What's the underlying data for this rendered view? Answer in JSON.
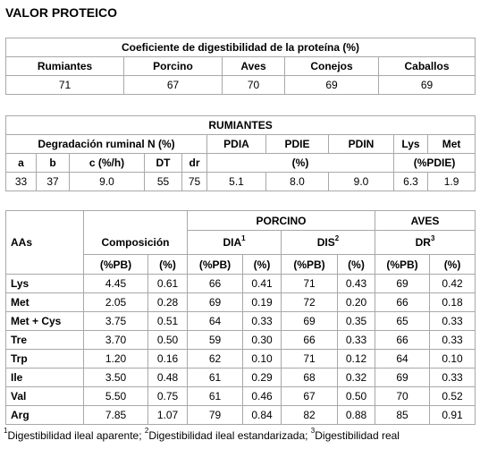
{
  "title": "VALOR PROTEICO",
  "table1": {
    "header": "Coeficiente de digestibilidad de la proteína (%)",
    "columns": [
      "Rumiantes",
      "Porcino",
      "Aves",
      "Conejos",
      "Caballos"
    ],
    "values": [
      "71",
      "67",
      "70",
      "69",
      "69"
    ]
  },
  "table2": {
    "header": "RUMIANTES",
    "group_degradacion": "Degradación ruminal N (%)",
    "col_pdia": "PDIA",
    "col_pdie": "PDIE",
    "col_pdin": "PDIN",
    "col_lys": "Lys",
    "col_met": "Met",
    "sub_a": "a",
    "sub_b": "b",
    "sub_c": "c (%/h)",
    "sub_dt": "DT",
    "sub_dr": "dr",
    "unit_pdi": "(%)",
    "unit_aa": "(%PDIE)",
    "values": [
      "33",
      "37",
      "9.0",
      "55",
      "75",
      "5.1",
      "8.0",
      "9.0",
      "6.3",
      "1.9"
    ]
  },
  "table3": {
    "group_porcino": "PORCINO",
    "group_aves": "AVES",
    "col_aas": "AAs",
    "col_composicion": "Composición",
    "col_dia": "DIA",
    "col_dia_sup": "1",
    "col_dis": "DIS",
    "col_dis_sup": "2",
    "col_dr": "DR",
    "col_dr_sup": "3",
    "unit_pb": "(%PB)",
    "unit_pct": "(%)",
    "rows": [
      {
        "aa": "Lys",
        "v": [
          "4.45",
          "0.61",
          "66",
          "0.41",
          "71",
          "0.43",
          "69",
          "0.42"
        ]
      },
      {
        "aa": "Met",
        "v": [
          "2.05",
          "0.28",
          "69",
          "0.19",
          "72",
          "0.20",
          "66",
          "0.18"
        ]
      },
      {
        "aa": "Met + Cys",
        "v": [
          "3.75",
          "0.51",
          "64",
          "0.33",
          "69",
          "0.35",
          "65",
          "0.33"
        ]
      },
      {
        "aa": "Tre",
        "v": [
          "3.70",
          "0.50",
          "59",
          "0.30",
          "66",
          "0.33",
          "66",
          "0.33"
        ]
      },
      {
        "aa": "Trp",
        "v": [
          "1.20",
          "0.16",
          "62",
          "0.10",
          "71",
          "0.12",
          "64",
          "0.10"
        ]
      },
      {
        "aa": "Ile",
        "v": [
          "3.50",
          "0.48",
          "61",
          "0.29",
          "68",
          "0.32",
          "69",
          "0.33"
        ]
      },
      {
        "aa": "Val",
        "v": [
          "5.50",
          "0.75",
          "61",
          "0.46",
          "67",
          "0.50",
          "70",
          "0.52"
        ]
      },
      {
        "aa": "Arg",
        "v": [
          "7.85",
          "1.07",
          "79",
          "0.84",
          "82",
          "0.88",
          "85",
          "0.91"
        ]
      }
    ]
  },
  "footnote": {
    "n1": "1",
    "t1": "Digestibilidad ileal aparente; ",
    "n2": "2",
    "t2": "Digestibilidad ileal estandarizada; ",
    "n3": "3",
    "t3": "Digestibilidad real"
  }
}
